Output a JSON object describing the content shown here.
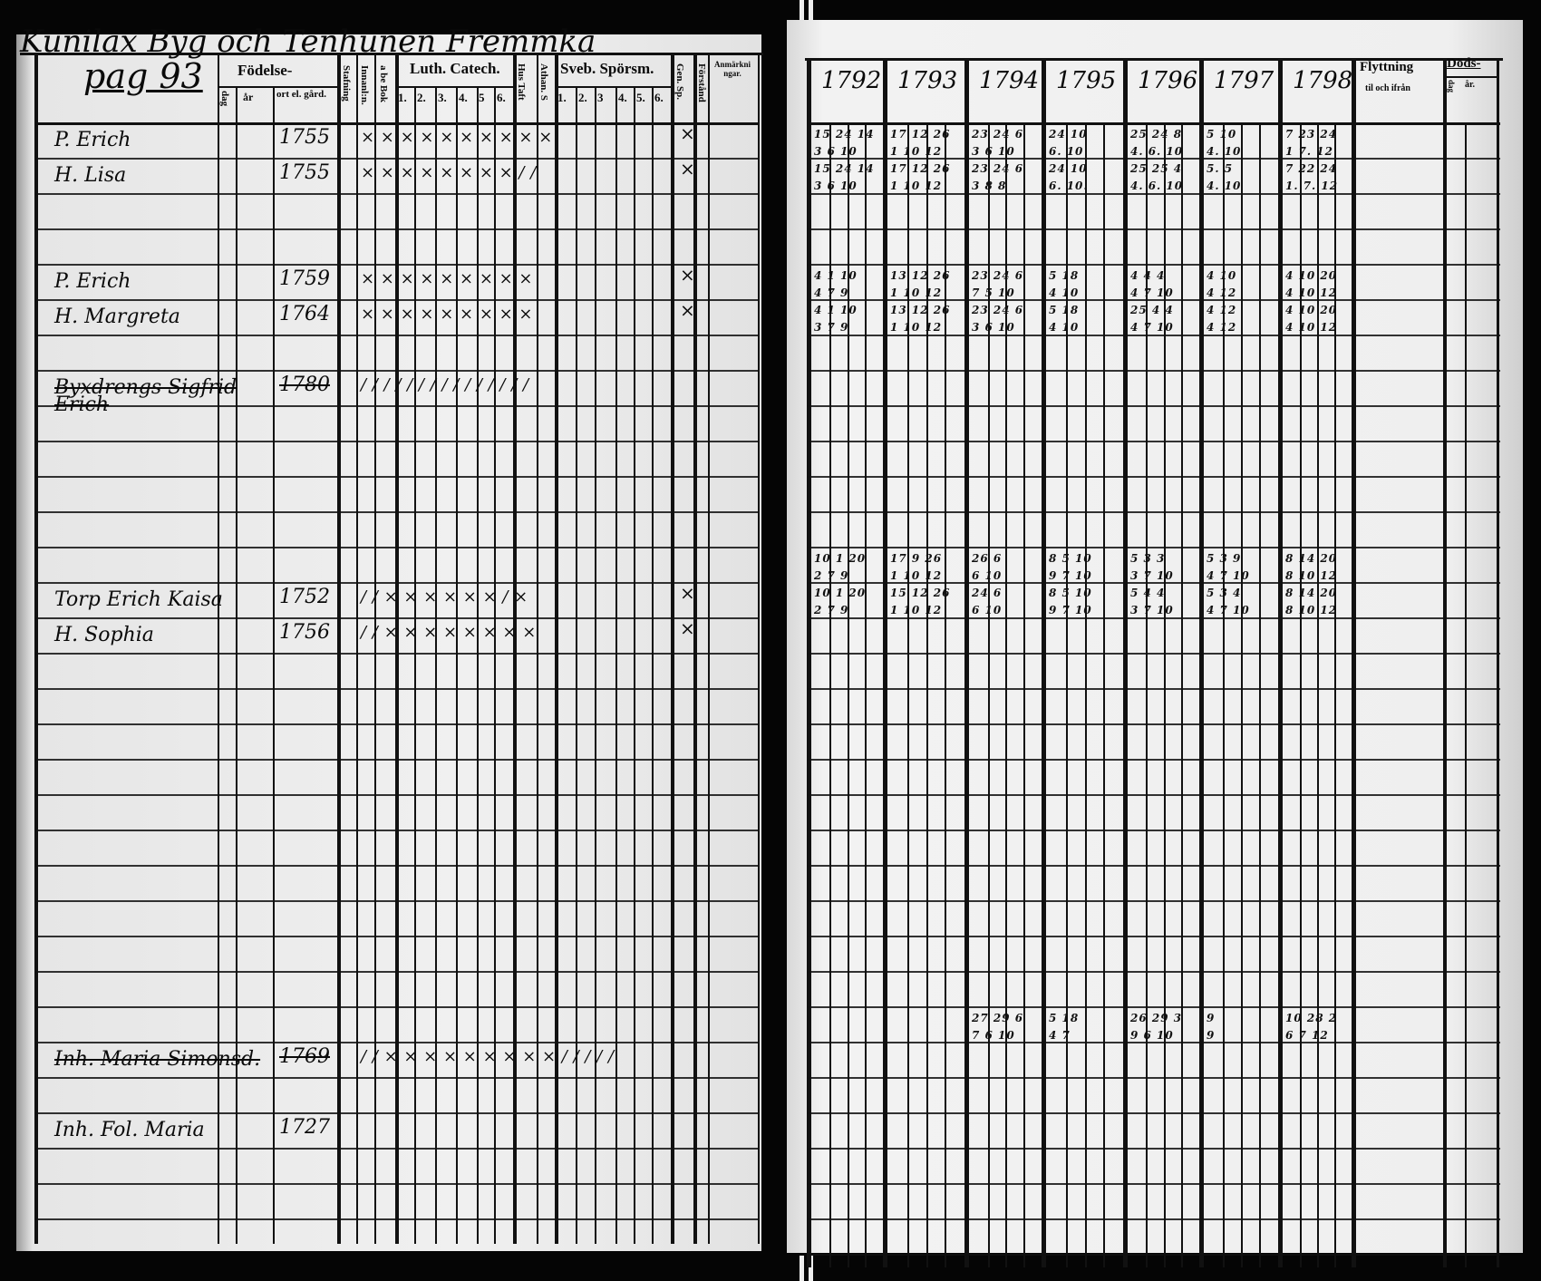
{
  "left_page": {
    "title": "Kunilax Byg och Tenhunen Fremmka",
    "page_number": "pag 93",
    "headers": {
      "fodelse": "Födelse-",
      "dag": "dag",
      "ar": "år",
      "ort": "ort el. gård.",
      "stanning": "Stafning",
      "innanlas": "Innanl:n.",
      "abc": "a be Bok",
      "luth_catech": "Luth. Catech.",
      "luth_nums": [
        "1.",
        "2.",
        "3.",
        "4.",
        "5",
        "6."
      ],
      "hustaft": "Hus Taft",
      "athan": "Athan. S",
      "sveb_sporsm": "Sveb. Spörsm.",
      "sveb_nums": [
        "1.",
        "2.",
        "3",
        "4.",
        "5.",
        "6."
      ],
      "gen_sp": "Gen. Sp.",
      "forstand": "Förstånd",
      "anmarkningar": "Anmärkningar."
    },
    "entries": [
      {
        "name": "P. Erich",
        "year": "1755",
        "marks": "× × × × × × × × × ×",
        "forstand": "×",
        "struck": false
      },
      {
        "name": "H. Lisa",
        "year": "1755",
        "marks": "× × × × × × × × / /",
        "forstand": "×",
        "struck": false
      },
      {
        "name": "P. Erich",
        "year": "1759",
        "marks": "× × × × × × × × ×",
        "forstand": "×",
        "struck": false
      },
      {
        "name": "H. Margreta",
        "year": "1764",
        "marks": "× × × × × × × × ×",
        "forstand": "×",
        "struck": false
      },
      {
        "name": "Byxdrengs Sigfrid Erich",
        "year": "1780",
        "marks": "/ / / / / / / / / / / / / / /",
        "forstand": "",
        "struck": true
      },
      {
        "name": "Torp Erich Kaisa",
        "year": "1752",
        "marks": "/ / × × × × × × / ×",
        "forstand": "×",
        "struck": false
      },
      {
        "name": "H. Sophia",
        "year": "1756",
        "marks": "/ / × × × × × × × ×",
        "forstand": "×",
        "struck": false
      },
      {
        "name": "Inh. Maria Simonsd.",
        "year": "1769",
        "marks": "/ / × × × × × × × × × / / / / /",
        "forstand": "",
        "struck": true
      },
      {
        "name": "Inh. Fol. Maria",
        "year": "1727",
        "marks": "",
        "forstand": "",
        "struck": false
      }
    ]
  },
  "right_page": {
    "years": [
      "1792",
      "1793",
      "1794",
      "1795",
      "1796",
      "1797",
      "1798"
    ],
    "flyttning": "Flyttning",
    "flyttning_sub": "til och ifrån",
    "doda": "Döds-",
    "doda_sub": [
      "dag",
      "år."
    ],
    "blocks": [
      {
        "rows": [
          [
            "15 24 14",
            "17 12 26",
            "23 24 6",
            "24 10",
            "25 24 8",
            "5 10",
            "7 23 24"
          ],
          [
            "3 6 10",
            "1 10 12",
            "3 6 10",
            "6. 10",
            "4. 6. 10",
            "4. 10",
            "1 7. 12"
          ],
          [
            "15 24 14",
            "17 12 26",
            "23 24 6",
            "24 10",
            "25 25 4",
            "5. 5",
            "7 22 24"
          ],
          [
            "3 6 10",
            "1 10 12",
            "3 8 8",
            "6. 10.",
            "4. 6. 10",
            "4. 10",
            "1. 7. 12"
          ]
        ]
      },
      {
        "rows": [
          [
            "4 1 10",
            "13 12 26",
            "23 24 6",
            "5 18",
            "4 4 4",
            "4 10",
            "4 10 20"
          ],
          [
            "4 7 9",
            "1 10 12",
            "7 5 10",
            "4 10",
            "4 7 10",
            "4 12",
            "4 10 12"
          ],
          [
            "4 1 10",
            "13 12 26",
            "23 24 6",
            "5 18",
            "25 4 4",
            "4 12",
            "4 10 20"
          ],
          [
            "3 7 9",
            "1 10 12",
            "3 6 10",
            "4 10",
            "4 7 10",
            "4 12",
            "4 10 12"
          ]
        ]
      },
      {
        "rows": [
          [
            "10 1 20",
            "17 9 26",
            "26 6",
            "8 5 10",
            "5 3 3",
            "5 3 9",
            "8 14 20"
          ],
          [
            "2 7 9",
            "1 10 12",
            "6 10",
            "9 7 10",
            "3 7 10",
            "4 7 10",
            "8 10 12"
          ],
          [
            "10 1 20",
            "15 12 26",
            "24 6",
            "8 5 10",
            "5 4 4",
            "5 3 4",
            "8 14 20"
          ],
          [
            "2 7 9",
            "1 10 12",
            "6 10",
            "9 7 10",
            "3 7 10",
            "4 7 10",
            "8 10 12"
          ]
        ]
      },
      {
        "rows": [
          [
            "",
            "",
            "27 29 6",
            "5 18",
            "26 29 3",
            "9",
            "10 28 2"
          ],
          [
            "",
            "",
            "7 6 10",
            "4 7",
            "9 6 10",
            "9",
            "6 7 12"
          ]
        ]
      }
    ]
  }
}
